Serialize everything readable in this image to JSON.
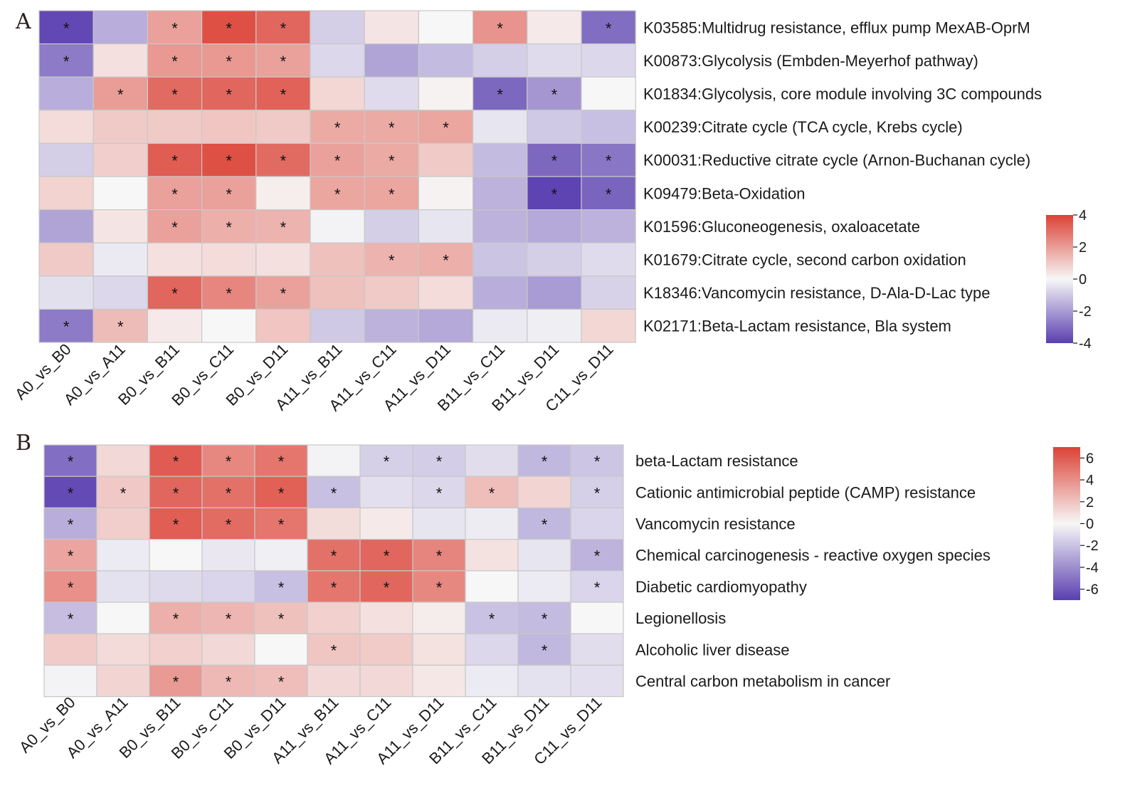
{
  "colors": {
    "low": "#5a3fb0",
    "mid": "#f7f7f7",
    "high": "#dc4236",
    "grid": "#c8c8c8"
  },
  "chart_data": [
    {
      "panel": "A",
      "type": "heatmap",
      "columns": [
        "A0_vs_B0",
        "A0_vs_A11",
        "B0_vs_B11",
        "B0_vs_C11",
        "B0_vs_D11",
        "A11_vs_B11",
        "A11_vs_C11",
        "A11_vs_D11",
        "B11_vs_C11",
        "B11_vs_D11",
        "C11_vs_D11"
      ],
      "rows": [
        "K03585:Multidrug resistance, efflux pump MexAB-OprM",
        "K00873:Glycolysis (Embden-Meyerhof pathway)",
        "K01834:Glycolysis, core module involving 3C compounds",
        "K00239:Citrate cycle (TCA cycle, Krebs cycle)",
        "K00031:Reductive citrate cycle (Arnon-Buchanan cycle)",
        "K09479:Beta-Oxidation",
        "K01596:Gluconeogenesis, oxaloacetate",
        "K01679:Citrate cycle, second carbon oxidation",
        "K18346:Vancomycin resistance, D-Ala-D-Lac type",
        "K02171:Beta-Lactam resistance, Bla system"
      ],
      "values": [
        [
          -3.8,
          -1.6,
          1.9,
          3.7,
          3.2,
          -0.9,
          0.4,
          0.0,
          2.2,
          0.3,
          -3.0
        ],
        [
          -2.7,
          0.5,
          2.1,
          2.1,
          1.9,
          -0.7,
          -1.8,
          -1.3,
          -0.9,
          -0.6,
          -0.7
        ],
        [
          -1.6,
          2.0,
          3.1,
          3.2,
          3.3,
          0.7,
          -0.6,
          0.1,
          -3.1,
          -2.1,
          0.0
        ],
        [
          0.6,
          1.0,
          1.0,
          1.1,
          1.0,
          1.7,
          1.7,
          1.8,
          -0.4,
          -1.0,
          -1.2
        ],
        [
          -0.9,
          0.9,
          3.4,
          3.7,
          3.1,
          1.9,
          1.7,
          1.0,
          -1.3,
          -3.1,
          -2.8
        ],
        [
          0.8,
          0.0,
          1.9,
          1.9,
          0.2,
          1.8,
          1.8,
          0.1,
          -1.5,
          -3.9,
          -3.2
        ],
        [
          -1.8,
          0.4,
          1.9,
          1.6,
          1.5,
          -0.1,
          -0.9,
          -0.4,
          -1.5,
          -1.7,
          -1.5
        ],
        [
          1.0,
          -0.3,
          0.5,
          0.6,
          0.5,
          1.2,
          1.5,
          1.6,
          -1.1,
          -0.9,
          -0.6
        ],
        [
          -0.5,
          -0.7,
          3.2,
          2.5,
          1.9,
          1.2,
          1.0,
          0.6,
          -1.6,
          -2.0,
          -0.8
        ],
        [
          -2.7,
          1.3,
          0.3,
          0.0,
          1.1,
          -1.0,
          -1.5,
          -1.7,
          -0.3,
          -0.2,
          0.7
        ]
      ],
      "significant": [
        [
          1,
          0,
          1,
          1,
          1,
          0,
          0,
          0,
          1,
          0,
          1
        ],
        [
          1,
          0,
          1,
          1,
          1,
          0,
          0,
          0,
          0,
          0,
          0
        ],
        [
          0,
          1,
          1,
          1,
          1,
          0,
          0,
          0,
          1,
          1,
          0
        ],
        [
          0,
          0,
          0,
          0,
          0,
          1,
          1,
          1,
          0,
          0,
          0
        ],
        [
          0,
          0,
          1,
          1,
          1,
          1,
          1,
          0,
          0,
          1,
          1
        ],
        [
          0,
          0,
          1,
          1,
          0,
          1,
          1,
          0,
          0,
          1,
          1
        ],
        [
          0,
          0,
          1,
          1,
          1,
          0,
          0,
          0,
          0,
          0,
          0
        ],
        [
          0,
          0,
          0,
          0,
          0,
          0,
          1,
          1,
          0,
          0,
          0
        ],
        [
          0,
          0,
          1,
          1,
          1,
          0,
          0,
          0,
          0,
          0,
          0
        ],
        [
          1,
          1,
          0,
          0,
          0,
          0,
          0,
          0,
          0,
          0,
          0
        ]
      ],
      "scale": {
        "min": -4,
        "max": 4,
        "ticks": [
          "4",
          "2",
          "0",
          "-2",
          "-4"
        ]
      }
    },
    {
      "panel": "B",
      "type": "heatmap",
      "columns": [
        "A0_vs_B0",
        "A0_vs_A11",
        "B0_vs_B11",
        "B0_vs_C11",
        "B0_vs_D11",
        "A11_vs_B11",
        "A11_vs_C11",
        "A11_vs_D11",
        "B11_vs_C11",
        "B11_vs_D11",
        "C11_vs_D11"
      ],
      "rows": [
        "beta-Lactam resistance",
        "Cationic antimicrobial peptide (CAMP) resistance",
        "Vancomycin resistance",
        "Chemical carcinogenesis - reactive oxygen species",
        "Diabetic cardiomyopathy",
        "Legionellosis",
        "Alcoholic liver disease",
        "Central carbon metabolism in cancer"
      ],
      "values": [
        [
          -5.2,
          1.2,
          6.0,
          4.3,
          5.0,
          -0.2,
          -1.5,
          -1.6,
          -1.0,
          -2.4,
          -1.9
        ],
        [
          -6.6,
          1.8,
          5.6,
          5.2,
          5.8,
          -2.1,
          -0.9,
          -1.2,
          2.2,
          1.3,
          -1.5
        ],
        [
          -2.8,
          1.6,
          5.9,
          5.4,
          5.0,
          1.0,
          0.5,
          -0.7,
          -0.4,
          -2.4,
          -1.3
        ],
        [
          3.2,
          -0.5,
          0.0,
          -0.6,
          -0.3,
          5.2,
          5.6,
          4.4,
          0.8,
          -0.7,
          -2.6
        ],
        [
          4.0,
          -0.8,
          -1.1,
          -1.3,
          -2.1,
          5.0,
          5.6,
          4.3,
          0.0,
          -0.5,
          -1.3
        ],
        [
          -2.2,
          0.0,
          2.8,
          2.5,
          2.1,
          1.5,
          0.9,
          0.4,
          -2.0,
          -2.3,
          0.0
        ],
        [
          1.7,
          1.1,
          1.5,
          1.2,
          0.0,
          1.9,
          1.7,
          0.8,
          -1.2,
          -2.4,
          -1.0
        ],
        [
          -0.2,
          1.3,
          3.6,
          2.4,
          2.2,
          1.2,
          1.2,
          0.6,
          -0.5,
          -0.8,
          -0.9
        ]
      ],
      "significant": [
        [
          1,
          0,
          1,
          1,
          1,
          0,
          1,
          1,
          0,
          1,
          1
        ],
        [
          1,
          1,
          1,
          1,
          1,
          1,
          0,
          1,
          1,
          0,
          1
        ],
        [
          1,
          0,
          1,
          1,
          1,
          0,
          0,
          0,
          0,
          1,
          0
        ],
        [
          1,
          0,
          0,
          0,
          0,
          1,
          1,
          1,
          0,
          0,
          1
        ],
        [
          1,
          0,
          0,
          0,
          1,
          1,
          1,
          1,
          0,
          0,
          1
        ],
        [
          1,
          0,
          1,
          1,
          1,
          0,
          0,
          0,
          1,
          1,
          0
        ],
        [
          0,
          0,
          0,
          0,
          0,
          1,
          0,
          0,
          0,
          1,
          0
        ],
        [
          0,
          0,
          1,
          1,
          1,
          0,
          0,
          0,
          0,
          0,
          0
        ]
      ],
      "scale": {
        "min": -7,
        "max": 7,
        "ticks": [
          "6",
          "4",
          "2",
          "0",
          "-2",
          "-4",
          "-6"
        ],
        "tick_values": [
          6,
          4,
          2,
          0,
          -2,
          -4,
          -6
        ]
      }
    }
  ]
}
